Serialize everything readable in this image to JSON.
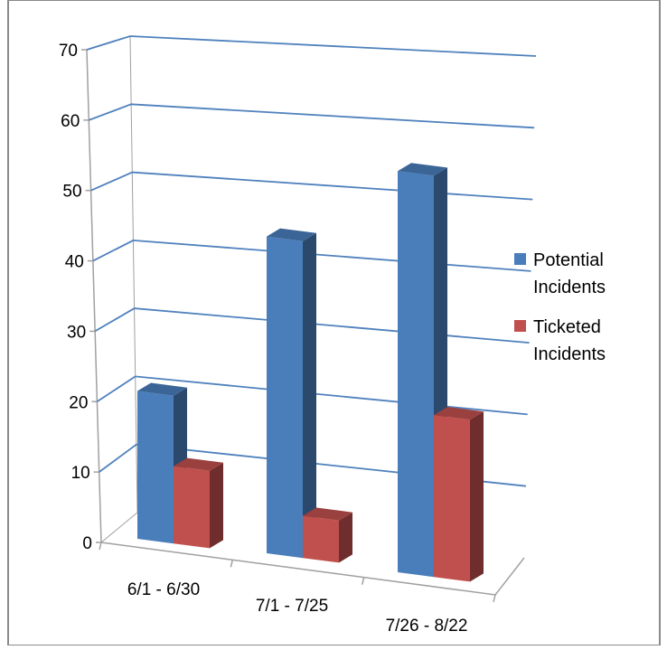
{
  "chart_data": {
    "type": "bar",
    "categories": [
      "6/1 - 6/30",
      "7/1 - 7/25",
      "7/26 - 8/22"
    ],
    "series": [
      {
        "name": "Potential Incidents",
        "values": [
          21,
          45,
          57
        ],
        "color": "#4a7ebb"
      },
      {
        "name": "Ticketed Incidents",
        "values": [
          11,
          6,
          23
        ],
        "color": "#c0504d"
      }
    ],
    "ylim": [
      0,
      70
    ],
    "yticks": [
      "0",
      "10",
      "20",
      "30",
      "40",
      "50",
      "60",
      "70"
    ],
    "grid": true,
    "legend": "right",
    "style": "3d-column"
  },
  "legend_lines": [
    [
      "Potential",
      "Incidents"
    ],
    [
      "Ticketed",
      "Incidents"
    ]
  ],
  "colors": {
    "gridline": "#4f81bd",
    "axis": "#a0a0a0",
    "frame": "#8a8a8a"
  }
}
